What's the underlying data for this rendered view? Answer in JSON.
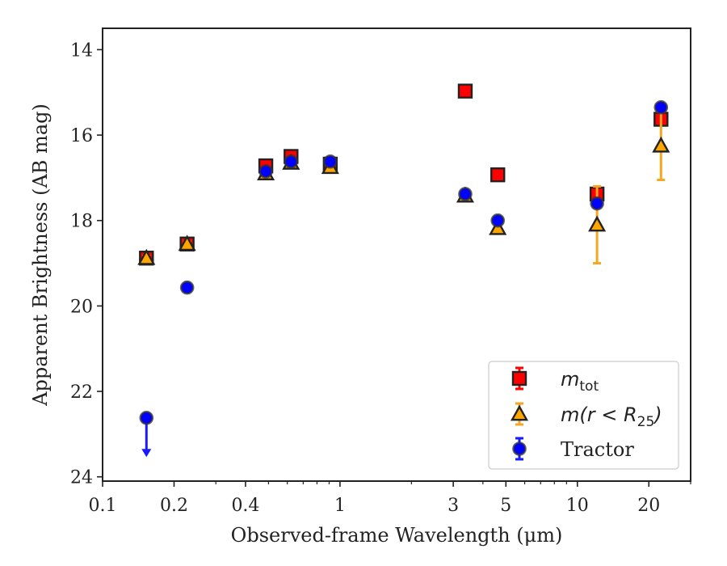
{
  "chart_data": {
    "type": "scatter",
    "xlabel": "Observed-frame Wavelength (μm)",
    "ylabel": "Apparent Brightness (AB mag)",
    "x_scale": "log",
    "xlim": [
      0.1,
      30
    ],
    "ylim": [
      24.1,
      13.5
    ],
    "y_inverted": true,
    "grid": false,
    "legend_position": "bottom-right",
    "x_major_ticks": [
      0.1,
      0.2,
      0.4,
      1,
      3,
      5,
      10,
      20
    ],
    "x_major_tick_labels": [
      "0.1",
      "0.2",
      "0.4",
      "1",
      "3",
      "5",
      "10",
      "20"
    ],
    "y_ticks": [
      14,
      16,
      18,
      20,
      22,
      24
    ],
    "y_tick_labels": [
      "14",
      "16",
      "18",
      "20",
      "22",
      "24"
    ],
    "series": [
      {
        "name": "m_tot",
        "legend_base": "m",
        "legend_sub": "tot",
        "marker": "square",
        "color": "#ff0000",
        "error_color": "#ff0000",
        "points": [
          {
            "x": 0.153,
            "y": 18.88,
            "err": 0.05
          },
          {
            "x": 0.227,
            "y": 18.55,
            "err": 0.05
          },
          {
            "x": 0.487,
            "y": 16.72,
            "err": 0.03
          },
          {
            "x": 0.622,
            "y": 16.5,
            "err": 0.03
          },
          {
            "x": 0.91,
            "y": 16.68,
            "err": 0.03
          },
          {
            "x": 3.37,
            "y": 14.97,
            "err": 0.03
          },
          {
            "x": 4.62,
            "y": 16.93,
            "err": 0.03
          },
          {
            "x": 12.1,
            "y": 17.38,
            "err": 0.05
          },
          {
            "x": 22.5,
            "y": 15.63,
            "err": 0.05
          }
        ]
      },
      {
        "name": "m(r < R25)",
        "legend_base": "m(r < R",
        "legend_sub": "25",
        "legend_close": ")",
        "marker": "triangle",
        "color": "#ffa500",
        "error_color": "#f5a623",
        "points": [
          {
            "x": 0.153,
            "y": 18.88,
            "err": 0.05
          },
          {
            "x": 0.227,
            "y": 18.55,
            "err": 0.05
          },
          {
            "x": 0.487,
            "y": 16.9,
            "err": 0.03
          },
          {
            "x": 0.622,
            "y": 16.65,
            "err": 0.03
          },
          {
            "x": 0.91,
            "y": 16.75,
            "err": 0.03
          },
          {
            "x": 3.37,
            "y": 17.42,
            "err": 0.03
          },
          {
            "x": 4.62,
            "y": 18.18,
            "err": 0.03
          },
          {
            "x": 12.1,
            "y": 18.1,
            "err": 0.9
          },
          {
            "x": 22.5,
            "y": 16.25,
            "err": 0.8
          }
        ]
      },
      {
        "name": "Tractor",
        "legend_base": "Tractor",
        "marker": "circle",
        "color": "#0000ff",
        "error_color": "#1a1aff",
        "points": [
          {
            "x": 0.153,
            "y": 22.62,
            "upper_limit": true,
            "arrow_to": 23.5
          },
          {
            "x": 0.227,
            "y": 19.57,
            "err": 0.05
          },
          {
            "x": 0.487,
            "y": 16.85,
            "err": 0.03
          },
          {
            "x": 0.622,
            "y": 16.62,
            "err": 0.03
          },
          {
            "x": 0.91,
            "y": 16.62,
            "err": 0.03
          },
          {
            "x": 3.37,
            "y": 17.38,
            "err": 0.03
          },
          {
            "x": 4.62,
            "y": 18.0,
            "err": 0.03
          },
          {
            "x": 12.1,
            "y": 17.6,
            "err": 0.05
          },
          {
            "x": 22.5,
            "y": 15.35,
            "err": 0.05
          }
        ]
      }
    ]
  }
}
